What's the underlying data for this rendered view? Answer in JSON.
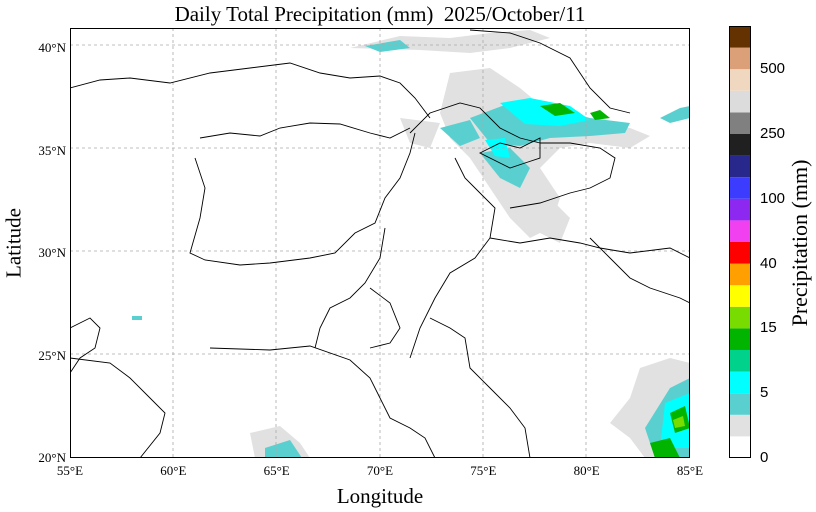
{
  "title": "Daily Total Precipitation (mm)  2025/October/11",
  "axes": {
    "xlabel": "Longitude",
    "ylabel": "Latitude",
    "x_ticks": [
      "55°E",
      "60°E",
      "65°E",
      "70°E",
      "75°E",
      "80°E",
      "85°E"
    ],
    "y_ticks": [
      "40°N",
      "35°N",
      "30°N",
      "25°N",
      "20°N"
    ],
    "x_range": [
      55,
      85
    ],
    "y_range": [
      20,
      41
    ],
    "grid": true
  },
  "colorbar": {
    "title": "Precipitation (mm)",
    "tick_labels": [
      "0",
      "5",
      "15",
      "40",
      "100",
      "250",
      "500"
    ],
    "colors": [
      "#ffffff",
      "#e1e1e1",
      "#5acfcf",
      "#00ffff",
      "#00d28c",
      "#00b400",
      "#78dc00",
      "#ffff00",
      "#ffa000",
      "#ff0000",
      "#f040f0",
      "#8c28f0",
      "#3c3cff",
      "#28288c",
      "#202020",
      "#808080",
      "#dcdcdc",
      "#f0d8c0",
      "#dca078",
      "#643200"
    ]
  }
}
